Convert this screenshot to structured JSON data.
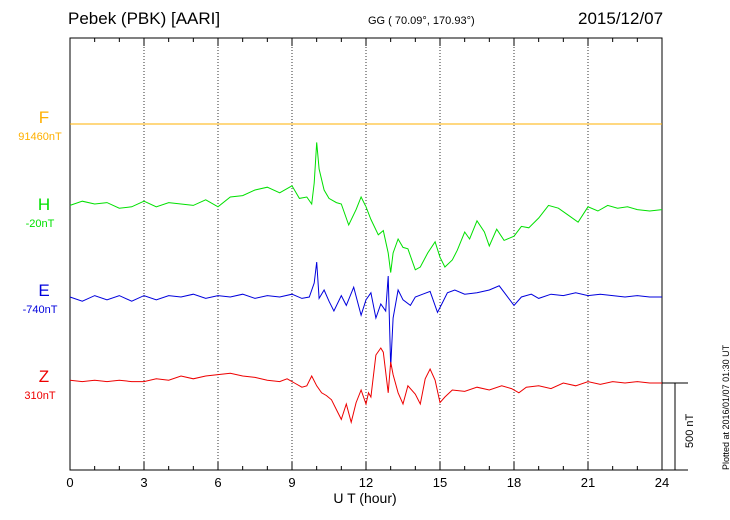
{
  "header": {
    "station": "Pebek (PBK)  [AARI]",
    "coords": "GG ( 70.09°, 170.93°)",
    "date": "2015/12/07"
  },
  "footer": {
    "plotted": "Plotted at 2016/01/07 01:30 UT",
    "scale": "500 nT"
  },
  "chart_data": {
    "type": "line",
    "xlabel": "U T (hour)",
    "xlim": [
      0,
      24
    ],
    "xticks": [
      "0",
      "3",
      "6",
      "9",
      "12",
      "15",
      "18",
      "21",
      "24"
    ],
    "scale_bar_nT": 500,
    "grid": "dotted vertical",
    "series": [
      {
        "name": "F",
        "baseline": "91460nT",
        "color": "#ffb000",
        "points": [
          [
            0,
            0
          ],
          [
            24,
            0
          ]
        ]
      },
      {
        "name": "H",
        "baseline": "-20nT",
        "color": "#00e000",
        "points": [
          [
            0,
            -8
          ],
          [
            0.5,
            -14
          ],
          [
            1,
            -10
          ],
          [
            1.5,
            -12
          ],
          [
            2,
            -4
          ],
          [
            2.5,
            -6
          ],
          [
            3,
            -14
          ],
          [
            3.5,
            -6
          ],
          [
            4,
            -12
          ],
          [
            4.5,
            -10
          ],
          [
            5,
            -8
          ],
          [
            5.5,
            -16
          ],
          [
            6,
            -6
          ],
          [
            6.5,
            -20
          ],
          [
            7,
            -22
          ],
          [
            7.5,
            -30
          ],
          [
            8,
            -34
          ],
          [
            8.5,
            -26
          ],
          [
            9,
            -36
          ],
          [
            9.3,
            -18
          ],
          [
            9.6,
            -20
          ],
          [
            9.8,
            -10
          ],
          [
            9.9,
            -40
          ],
          [
            10,
            -98
          ],
          [
            10.1,
            -60
          ],
          [
            10.3,
            -30
          ],
          [
            10.5,
            -18
          ],
          [
            10.8,
            -12
          ],
          [
            11,
            -10
          ],
          [
            11.3,
            20
          ],
          [
            11.6,
            -2
          ],
          [
            11.8,
            -20
          ],
          [
            12,
            -6
          ],
          [
            12.2,
            12
          ],
          [
            12.5,
            34
          ],
          [
            12.7,
            28
          ],
          [
            12.9,
            60
          ],
          [
            13.0,
            88
          ],
          [
            13.1,
            60
          ],
          [
            13.3,
            40
          ],
          [
            13.5,
            52
          ],
          [
            13.7,
            54
          ],
          [
            14,
            84
          ],
          [
            14.2,
            80
          ],
          [
            14.5,
            60
          ],
          [
            14.8,
            44
          ],
          [
            15,
            66
          ],
          [
            15.2,
            80
          ],
          [
            15.5,
            70
          ],
          [
            15.7,
            56
          ],
          [
            16,
            30
          ],
          [
            16.2,
            40
          ],
          [
            16.5,
            14
          ],
          [
            16.8,
            30
          ],
          [
            17,
            50
          ],
          [
            17.3,
            26
          ],
          [
            17.6,
            42
          ],
          [
            18,
            36
          ],
          [
            18.3,
            22
          ],
          [
            18.6,
            24
          ],
          [
            19,
            10
          ],
          [
            19.4,
            -8
          ],
          [
            19.8,
            -4
          ],
          [
            20.2,
            6
          ],
          [
            20.6,
            16
          ],
          [
            21,
            -6
          ],
          [
            21.4,
            0
          ],
          [
            21.8,
            -8
          ],
          [
            22.2,
            -4
          ],
          [
            22.6,
            -6
          ],
          [
            23,
            -2
          ],
          [
            23.5,
            0
          ],
          [
            24,
            -2
          ]
        ]
      },
      {
        "name": "E",
        "baseline": "-740nT",
        "color": "#0000dd",
        "points": [
          [
            0,
            0
          ],
          [
            0.5,
            6
          ],
          [
            1,
            -2
          ],
          [
            1.5,
            4
          ],
          [
            2,
            -2
          ],
          [
            2.5,
            6
          ],
          [
            3,
            -2
          ],
          [
            3.5,
            4
          ],
          [
            4,
            -2
          ],
          [
            4.5,
            0
          ],
          [
            5,
            -4
          ],
          [
            5.5,
            2
          ],
          [
            6,
            -2
          ],
          [
            6.5,
            0
          ],
          [
            7,
            -4
          ],
          [
            7.5,
            2
          ],
          [
            8,
            -2
          ],
          [
            8.5,
            0
          ],
          [
            9,
            -4
          ],
          [
            9.4,
            2
          ],
          [
            9.7,
            0
          ],
          [
            9.9,
            -20
          ],
          [
            10,
            -50
          ],
          [
            10.1,
            2
          ],
          [
            10.3,
            -10
          ],
          [
            10.5,
            6
          ],
          [
            10.7,
            20
          ],
          [
            11,
            -2
          ],
          [
            11.2,
            12
          ],
          [
            11.5,
            -14
          ],
          [
            11.8,
            26
          ],
          [
            12,
            4
          ],
          [
            12.2,
            -6
          ],
          [
            12.4,
            30
          ],
          [
            12.6,
            10
          ],
          [
            12.8,
            20
          ],
          [
            12.9,
            -30
          ],
          [
            13.0,
            100
          ],
          [
            13.1,
            30
          ],
          [
            13.3,
            -10
          ],
          [
            13.5,
            4
          ],
          [
            13.8,
            12
          ],
          [
            14,
            0
          ],
          [
            14.3,
            -4
          ],
          [
            14.6,
            -8
          ],
          [
            14.9,
            22
          ],
          [
            15.1,
            8
          ],
          [
            15.3,
            -6
          ],
          [
            15.6,
            -10
          ],
          [
            16,
            -4
          ],
          [
            16.5,
            -6
          ],
          [
            17,
            -10
          ],
          [
            17.4,
            -16
          ],
          [
            17.7,
            -2
          ],
          [
            18,
            12
          ],
          [
            18.3,
            0
          ],
          [
            18.7,
            -4
          ],
          [
            19,
            2
          ],
          [
            19.5,
            -4
          ],
          [
            20,
            -2
          ],
          [
            20.5,
            -6
          ],
          [
            21,
            -2
          ],
          [
            21.5,
            -4
          ],
          [
            22,
            -2
          ],
          [
            22.5,
            0
          ],
          [
            23,
            -2
          ],
          [
            23.5,
            0
          ],
          [
            24,
            0
          ]
        ]
      },
      {
        "name": "Z",
        "baseline": "310nT",
        "color": "#ee0000",
        "points": [
          [
            0,
            -4
          ],
          [
            0.5,
            -2
          ],
          [
            1,
            -4
          ],
          [
            1.5,
            -2
          ],
          [
            2,
            -4
          ],
          [
            2.5,
            -2
          ],
          [
            3,
            -2
          ],
          [
            3.5,
            -6
          ],
          [
            4,
            -4
          ],
          [
            4.5,
            -10
          ],
          [
            5,
            -6
          ],
          [
            5.5,
            -10
          ],
          [
            6,
            -12
          ],
          [
            6.5,
            -14
          ],
          [
            7,
            -10
          ],
          [
            7.5,
            -8
          ],
          [
            8,
            -4
          ],
          [
            8.5,
            -2
          ],
          [
            8.8,
            -6
          ],
          [
            9.1,
            0
          ],
          [
            9.4,
            6
          ],
          [
            9.6,
            4
          ],
          [
            9.8,
            -10
          ],
          [
            10,
            4
          ],
          [
            10.2,
            14
          ],
          [
            10.4,
            18
          ],
          [
            10.6,
            24
          ],
          [
            10.8,
            38
          ],
          [
            11,
            52
          ],
          [
            11.2,
            30
          ],
          [
            11.4,
            56
          ],
          [
            11.6,
            28
          ],
          [
            11.8,
            10
          ],
          [
            12,
            30
          ],
          [
            12.1,
            14
          ],
          [
            12.2,
            20
          ],
          [
            12.4,
            -40
          ],
          [
            12.6,
            -50
          ],
          [
            12.7,
            -44
          ],
          [
            12.9,
            14
          ],
          [
            13.0,
            -30
          ],
          [
            13.1,
            -12
          ],
          [
            13.3,
            14
          ],
          [
            13.5,
            30
          ],
          [
            13.7,
            4
          ],
          [
            14,
            16
          ],
          [
            14.2,
            30
          ],
          [
            14.4,
            -6
          ],
          [
            14.6,
            -20
          ],
          [
            14.8,
            -4
          ],
          [
            15,
            28
          ],
          [
            15.2,
            20
          ],
          [
            15.5,
            10
          ],
          [
            16,
            12
          ],
          [
            16.5,
            6
          ],
          [
            17,
            10
          ],
          [
            17.5,
            4
          ],
          [
            17.9,
            8
          ],
          [
            18.2,
            14
          ],
          [
            18.5,
            6
          ],
          [
            19,
            4
          ],
          [
            19.5,
            8
          ],
          [
            20,
            0
          ],
          [
            20.5,
            4
          ],
          [
            21,
            -2
          ],
          [
            21.5,
            2
          ],
          [
            22,
            -2
          ],
          [
            22.5,
            0
          ],
          [
            23,
            -2
          ],
          [
            23.5,
            0
          ],
          [
            24,
            0
          ]
        ]
      }
    ]
  }
}
